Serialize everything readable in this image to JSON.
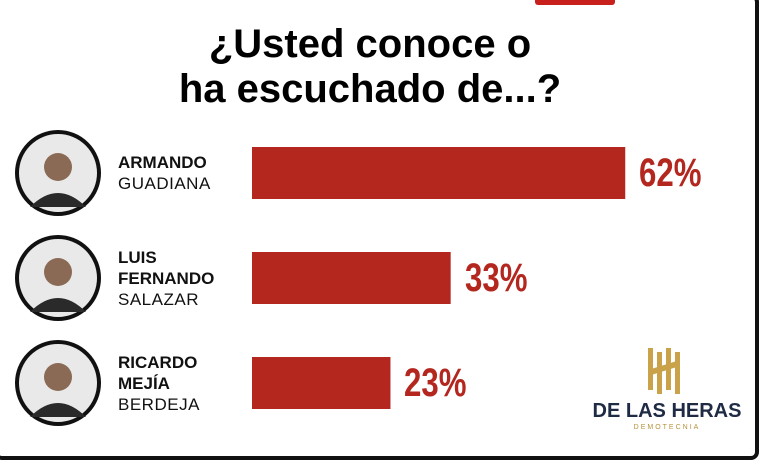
{
  "chart_data": {
    "type": "bar",
    "title": [
      "¿Usted conoce o",
      "ha escuchado de...?"
    ],
    "categories": [
      {
        "given": "ARMANDO",
        "surname": "GUADIANA"
      },
      {
        "given": "LUIS FERNANDO",
        "surname": "SALAZAR"
      },
      {
        "given": "RICARDO MEJÍA",
        "surname": "BERDEJA"
      }
    ],
    "values": [
      62,
      33,
      23
    ],
    "value_labels": [
      "62%",
      "33%",
      "23%"
    ],
    "color": "#b3271f",
    "source": {
      "name": "DE LAS HERAS",
      "subtitle": "DEMOTECNIA"
    }
  }
}
